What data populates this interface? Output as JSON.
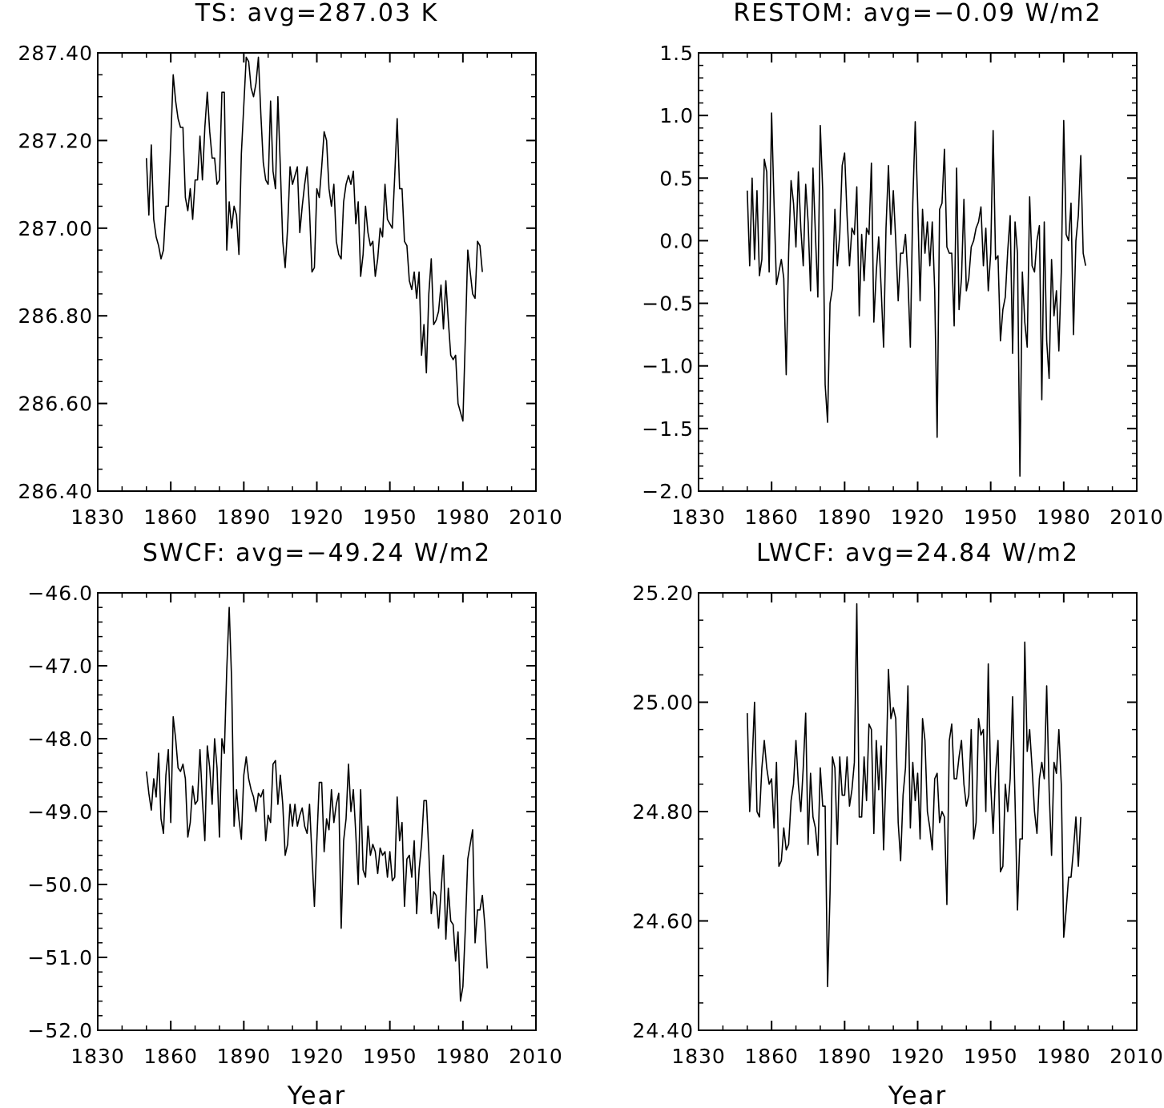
{
  "chart_data": [
    {
      "type": "line",
      "title": "TS: avg=287.03 K",
      "xlabel": "",
      "ylabel": "",
      "xlim": [
        1830,
        2010
      ],
      "ylim": [
        286.4,
        287.4
      ],
      "x_ticks": [
        1830,
        1860,
        1890,
        1920,
        1950,
        1980,
        2010
      ],
      "x_tick_labels": [
        "1830",
        "1860",
        "1890",
        "1920",
        "1950",
        "1980",
        "2010"
      ],
      "y_ticks": [
        286.4,
        286.6,
        286.8,
        287.0,
        287.2,
        287.4
      ],
      "y_tick_labels": [
        "286.40",
        "286.60",
        "286.80",
        "287.00",
        "287.20",
        "287.40"
      ],
      "y_minor_step": 0.05,
      "grid": false,
      "x_start": 1850,
      "values": [
        287.16,
        287.03,
        287.19,
        287.02,
        286.98,
        286.96,
        286.93,
        286.95,
        287.05,
        287.05,
        287.2,
        287.35,
        287.29,
        287.25,
        287.23,
        287.23,
        287.07,
        287.04,
        287.09,
        287.02,
        287.11,
        287.11,
        287.21,
        287.11,
        287.23,
        287.31,
        287.22,
        287.16,
        287.16,
        287.1,
        287.11,
        287.31,
        287.31,
        286.95,
        287.06,
        287.0,
        287.05,
        287.03,
        286.94,
        287.17,
        287.28,
        287.39,
        287.38,
        287.32,
        287.3,
        287.33,
        287.39,
        287.26,
        287.15,
        287.11,
        287.1,
        287.29,
        287.13,
        287.09,
        287.3,
        287.14,
        286.97,
        286.91,
        287.0,
        287.14,
        287.1,
        287.12,
        287.14,
        286.99,
        287.05,
        287.1,
        287.14,
        287.04,
        286.9,
        286.91,
        287.09,
        287.07,
        287.14,
        287.22,
        287.2,
        287.09,
        287.05,
        287.1,
        286.97,
        286.94,
        286.93,
        287.06,
        287.1,
        287.12,
        287.1,
        287.13,
        287.01,
        287.06,
        286.89,
        286.94,
        287.05,
        286.99,
        286.96,
        286.97,
        286.89,
        286.93,
        287.0,
        286.98,
        287.1,
        287.02,
        287.01,
        287.0,
        287.12,
        287.25,
        287.09,
        287.09,
        286.97,
        286.96,
        286.88,
        286.86,
        286.9,
        286.84,
        286.9,
        286.71,
        286.78,
        286.67,
        286.85,
        286.93,
        286.78,
        286.79,
        286.81,
        286.87,
        286.77,
        286.88,
        286.79,
        286.71,
        286.7,
        286.71,
        286.6,
        286.58,
        286.56,
        286.75,
        286.95,
        286.9,
        286.85,
        286.84,
        286.97,
        286.96,
        286.9
      ]
    },
    {
      "type": "line",
      "title": "RESTOM: avg=−0.09 W/m2",
      "xlabel": "",
      "ylabel": "",
      "xlim": [
        1830,
        2010
      ],
      "ylim": [
        -2.0,
        1.5
      ],
      "x_ticks": [
        1830,
        1860,
        1890,
        1920,
        1950,
        1980,
        2010
      ],
      "x_tick_labels": [
        "1830",
        "1860",
        "1890",
        "1920",
        "1950",
        "1980",
        "2010"
      ],
      "y_ticks": [
        -2.0,
        -1.5,
        -1.0,
        -0.5,
        0.0,
        0.5,
        1.0,
        1.5
      ],
      "y_tick_labels": [
        "−2.0",
        "−1.5",
        "−1.0",
        "−0.5",
        "0.0",
        "0.5",
        "1.0",
        "1.5"
      ],
      "y_minor_step": 0.1,
      "grid": false,
      "x_start": 1850,
      "values": [
        0.4,
        -0.2,
        0.5,
        -0.15,
        0.4,
        -0.28,
        -0.15,
        0.65,
        0.55,
        -0.25,
        1.02,
        0.3,
        -0.35,
        -0.25,
        -0.15,
        -0.3,
        -1.07,
        -0.1,
        0.48,
        0.3,
        -0.05,
        0.55,
        0.1,
        -0.2,
        0.45,
        0.15,
        -0.4,
        0.58,
        0.05,
        -0.45,
        0.92,
        0.4,
        -1.15,
        -1.45,
        -0.5,
        -0.38,
        0.25,
        -0.2,
        0.05,
        0.6,
        0.7,
        0.2,
        -0.2,
        0.1,
        0.05,
        0.43,
        -0.6,
        0.05,
        -0.32,
        0.1,
        0.05,
        0.62,
        -0.65,
        -0.25,
        0.03,
        -0.38,
        -0.85,
        0.1,
        0.6,
        0.05,
        0.4,
        0.0,
        -0.48,
        -0.1,
        -0.1,
        0.05,
        -0.3,
        -0.85,
        0.3,
        0.95,
        0.3,
        -0.48,
        0.25,
        -0.1,
        0.15,
        -0.2,
        0.15,
        -0.4,
        -1.57,
        0.25,
        0.3,
        0.73,
        -0.05,
        -0.1,
        -0.1,
        -0.68,
        0.58,
        -0.55,
        -0.3,
        0.33,
        -0.4,
        -0.3,
        -0.05,
        0.0,
        0.1,
        0.15,
        0.27,
        -0.2,
        0.1,
        -0.4,
        -0.1,
        0.88,
        -0.15,
        -0.12,
        -0.8,
        -0.55,
        -0.45,
        -0.08,
        0.2,
        -0.9,
        0.15,
        -0.1,
        -1.88,
        -0.25,
        -0.65,
        -0.85,
        0.35,
        -0.2,
        -0.25,
        0.0,
        0.12,
        -1.27,
        0.15,
        -0.8,
        -1.1,
        -0.15,
        -0.6,
        -0.4,
        -0.88,
        -0.25,
        0.96,
        0.05,
        0.0,
        0.3,
        -0.75,
        0.0,
        0.2,
        0.68,
        -0.1,
        -0.2
      ]
    },
    {
      "type": "line",
      "title": "SWCF: avg=−49.24 W/m2",
      "xlabel": "Year",
      "ylabel": "",
      "xlim": [
        1830,
        2010
      ],
      "ylim": [
        -52.0,
        -46.0
      ],
      "x_ticks": [
        1830,
        1860,
        1890,
        1920,
        1950,
        1980,
        2010
      ],
      "x_tick_labels": [
        "1830",
        "1860",
        "1890",
        "1920",
        "1950",
        "1980",
        "2010"
      ],
      "y_ticks": [
        -52.0,
        -51.0,
        -50.0,
        -49.0,
        -48.0,
        -47.0,
        -46.0
      ],
      "y_tick_labels": [
        "−52.0",
        "−51.0",
        "−50.0",
        "−49.0",
        "−48.0",
        "−47.0",
        "−46.0"
      ],
      "y_minor_step": 0.2,
      "grid": false,
      "x_start": 1850,
      "values": [
        -48.45,
        -48.75,
        -48.98,
        -48.55,
        -48.8,
        -48.2,
        -49.1,
        -49.3,
        -48.5,
        -48.15,
        -49.15,
        -47.7,
        -48.0,
        -48.4,
        -48.45,
        -48.35,
        -48.55,
        -49.35,
        -49.15,
        -48.65,
        -48.9,
        -48.85,
        -48.15,
        -48.85,
        -49.4,
        -48.1,
        -48.4,
        -48.9,
        -48.0,
        -48.4,
        -49.35,
        -48.0,
        -48.2,
        -47.05,
        -46.2,
        -47.2,
        -49.2,
        -48.7,
        -49.1,
        -49.38,
        -48.5,
        -48.25,
        -48.55,
        -48.7,
        -48.8,
        -49.0,
        -48.75,
        -48.8,
        -48.7,
        -49.4,
        -49.05,
        -49.15,
        -48.35,
        -48.3,
        -48.9,
        -48.5,
        -48.9,
        -49.6,
        -49.45,
        -48.9,
        -49.2,
        -48.9,
        -49.2,
        -49.05,
        -48.95,
        -49.2,
        -49.3,
        -48.9,
        -49.6,
        -50.3,
        -49.4,
        -48.6,
        -48.6,
        -49.55,
        -49.1,
        -49.25,
        -48.7,
        -49.15,
        -48.9,
        -48.75,
        -50.6,
        -49.4,
        -49.1,
        -48.35,
        -49.0,
        -48.7,
        -49.3,
        -50.0,
        -48.7,
        -49.8,
        -49.9,
        -49.2,
        -49.6,
        -49.45,
        -49.55,
        -49.85,
        -49.5,
        -49.6,
        -49.55,
        -49.9,
        -49.55,
        -49.95,
        -49.9,
        -48.8,
        -49.4,
        -49.15,
        -50.3,
        -49.65,
        -49.6,
        -49.9,
        -49.4,
        -50.4,
        -49.8,
        -49.45,
        -48.85,
        -48.85,
        -49.55,
        -50.4,
        -50.1,
        -50.15,
        -50.6,
        -50.1,
        -49.6,
        -50.75,
        -50.05,
        -50.5,
        -50.55,
        -51.05,
        -50.65,
        -51.6,
        -51.4,
        -50.6,
        -49.65,
        -49.45,
        -49.25,
        -50.8,
        -50.35,
        -50.35,
        -50.15,
        -50.55,
        -51.15
      ]
    },
    {
      "type": "line",
      "title": "LWCF: avg=24.84 W/m2",
      "xlabel": "Year",
      "ylabel": "",
      "xlim": [
        1830,
        2010
      ],
      "ylim": [
        24.4,
        25.2
      ],
      "x_ticks": [
        1830,
        1860,
        1890,
        1920,
        1950,
        1980,
        2010
      ],
      "x_tick_labels": [
        "1830",
        "1860",
        "1890",
        "1920",
        "1950",
        "1980",
        "2010"
      ],
      "y_ticks": [
        24.4,
        24.6,
        24.8,
        25.0,
        25.2
      ],
      "y_tick_labels": [
        "24.40",
        "24.60",
        "24.80",
        "25.00",
        "25.20"
      ],
      "y_minor_step": 0.05,
      "grid": false,
      "x_start": 1850,
      "values": [
        24.98,
        24.8,
        24.89,
        25.0,
        24.8,
        24.79,
        24.88,
        24.93,
        24.88,
        24.85,
        24.86,
        24.77,
        24.89,
        24.7,
        24.71,
        24.77,
        24.73,
        24.74,
        24.82,
        24.85,
        24.93,
        24.85,
        24.8,
        24.88,
        24.98,
        24.74,
        24.87,
        24.79,
        24.77,
        24.72,
        24.88,
        24.81,
        24.81,
        24.48,
        24.65,
        24.9,
        24.88,
        24.74,
        24.9,
        24.83,
        24.83,
        24.9,
        24.81,
        24.84,
        24.89,
        25.18,
        24.79,
        24.79,
        24.9,
        24.82,
        24.96,
        24.95,
        24.76,
        24.93,
        24.84,
        24.92,
        24.73,
        24.87,
        25.06,
        24.97,
        24.99,
        24.97,
        24.78,
        24.71,
        24.83,
        24.88,
        25.03,
        24.77,
        24.89,
        24.82,
        24.87,
        24.75,
        24.97,
        24.93,
        24.8,
        24.77,
        24.73,
        24.86,
        24.87,
        24.78,
        24.8,
        24.79,
        24.63,
        24.93,
        24.96,
        24.86,
        24.86,
        24.9,
        24.93,
        24.85,
        24.81,
        24.83,
        24.95,
        24.75,
        24.78,
        24.97,
        24.94,
        24.95,
        24.8,
        25.07,
        24.85,
        24.76,
        24.87,
        24.93,
        24.69,
        24.7,
        24.85,
        24.8,
        24.86,
        25.01,
        24.82,
        24.62,
        24.75,
        24.75,
        25.11,
        24.91,
        24.95,
        24.88,
        24.8,
        24.76,
        24.86,
        24.89,
        24.86,
        25.03,
        24.84,
        24.72,
        24.89,
        24.87,
        24.95,
        24.85,
        24.57,
        24.62,
        24.68,
        24.68,
        24.73,
        24.79,
        24.7,
        24.79
      ]
    }
  ]
}
